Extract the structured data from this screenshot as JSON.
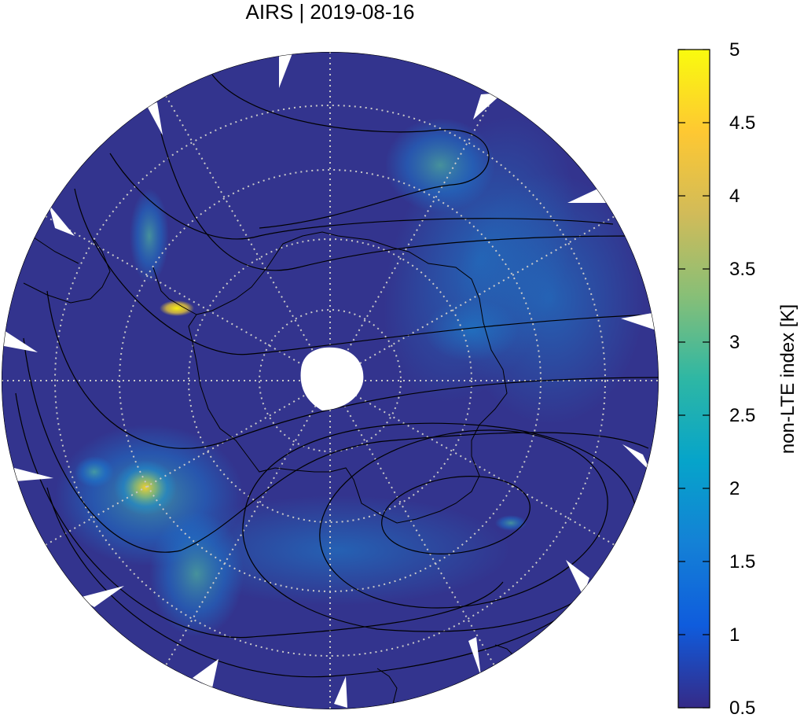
{
  "title": "AIRS | 2019-08-16",
  "colorbar": {
    "label": "non-LTE index [K]",
    "min": 0.5,
    "max": 5,
    "ticks": [
      "5",
      "4.5",
      "4",
      "3.5",
      "3",
      "2.5",
      "2",
      "1.5",
      "1",
      "0.5"
    ],
    "colors": [
      "#352a87",
      "#0f5cdd",
      "#1481d6",
      "#06a4ca",
      "#2eb7a4",
      "#87bf77",
      "#d1bb59",
      "#fec832",
      "#f9fb0e"
    ]
  },
  "map": {
    "projection": "south polar stereographic",
    "background_color": "#33348e",
    "grid_color": "#c8c8c8",
    "contour_color": "#000000",
    "coast_color": "#000000"
  }
}
